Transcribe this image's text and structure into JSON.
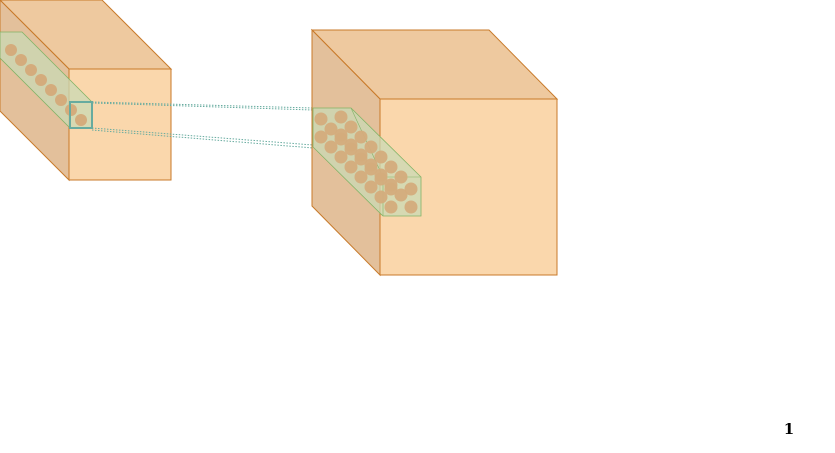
{
  "page": {
    "number": "1"
  },
  "colors": {
    "cube_front": "#fad7ac",
    "cube_top": "#eec99f",
    "cube_side": "#e3c09b",
    "cube_stroke": "#c87a2a",
    "slab_fill": "#d5e8d4",
    "slab_stroke": "#82b366",
    "neuron": "#d4ac7c",
    "kernel_stroke": "#67ab9f",
    "connector": "#67ab9f"
  }
}
